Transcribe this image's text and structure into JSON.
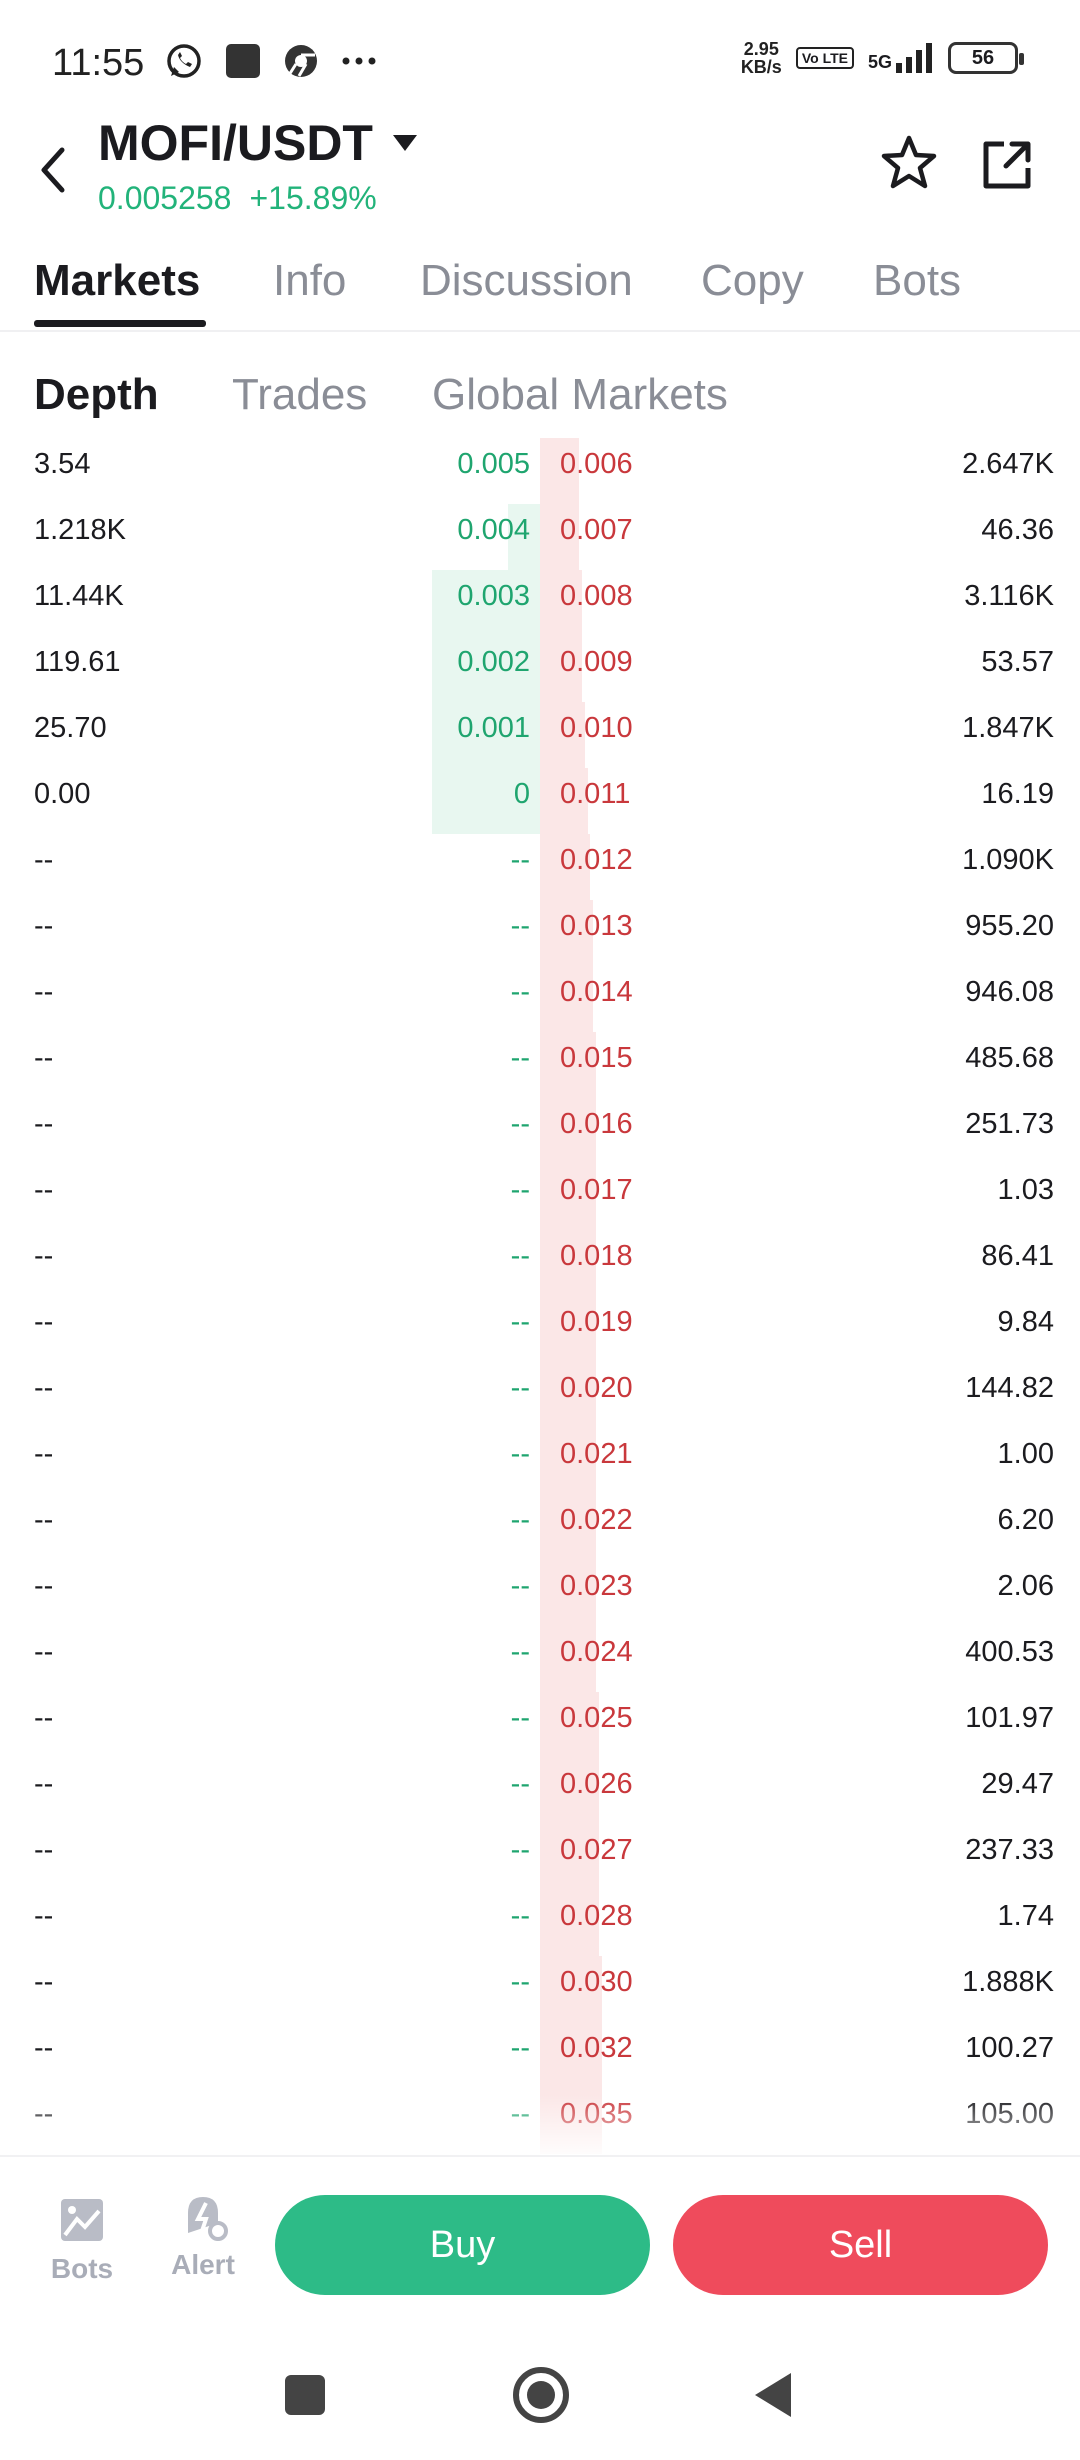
{
  "status_bar": {
    "time": "11:55",
    "speed_value": "2.95",
    "speed_unit": "KB/s",
    "volte": "Vo LTE",
    "network": "5G",
    "battery": "56"
  },
  "header": {
    "pair": "MOFI/USDT",
    "price": "0.005258",
    "change": "+15.89%"
  },
  "tabs": [
    "Markets",
    "Info",
    "Discussion",
    "Copy",
    "Bots"
  ],
  "subtabs": [
    "Depth",
    "Trades",
    "Global Markets"
  ],
  "order_book": {
    "rows": [
      {
        "bid_qty": "3.54",
        "bid_price": "0.005",
        "ask_price": "0.006",
        "ask_qty": "2.647K"
      },
      {
        "bid_qty": "1.218K",
        "bid_price": "0.004",
        "ask_price": "0.007",
        "ask_qty": "46.36"
      },
      {
        "bid_qty": "11.44K",
        "bid_price": "0.003",
        "ask_price": "0.008",
        "ask_qty": "3.116K"
      },
      {
        "bid_qty": "119.61",
        "bid_price": "0.002",
        "ask_price": "0.009",
        "ask_qty": "53.57"
      },
      {
        "bid_qty": "25.70",
        "bid_price": "0.001",
        "ask_price": "0.010",
        "ask_qty": "1.847K"
      },
      {
        "bid_qty": "0.00",
        "bid_price": "0",
        "ask_price": "0.011",
        "ask_qty": "16.19"
      },
      {
        "bid_qty": "--",
        "bid_price": "--",
        "ask_price": "0.012",
        "ask_qty": "1.090K"
      },
      {
        "bid_qty": "--",
        "bid_price": "--",
        "ask_price": "0.013",
        "ask_qty": "955.20"
      },
      {
        "bid_qty": "--",
        "bid_price": "--",
        "ask_price": "0.014",
        "ask_qty": "946.08"
      },
      {
        "bid_qty": "--",
        "bid_price": "--",
        "ask_price": "0.015",
        "ask_qty": "485.68"
      },
      {
        "bid_qty": "--",
        "bid_price": "--",
        "ask_price": "0.016",
        "ask_qty": "251.73"
      },
      {
        "bid_qty": "--",
        "bid_price": "--",
        "ask_price": "0.017",
        "ask_qty": "1.03"
      },
      {
        "bid_qty": "--",
        "bid_price": "--",
        "ask_price": "0.018",
        "ask_qty": "86.41"
      },
      {
        "bid_qty": "--",
        "bid_price": "--",
        "ask_price": "0.019",
        "ask_qty": "9.84"
      },
      {
        "bid_qty": "--",
        "bid_price": "--",
        "ask_price": "0.020",
        "ask_qty": "144.82"
      },
      {
        "bid_qty": "--",
        "bid_price": "--",
        "ask_price": "0.021",
        "ask_qty": "1.00"
      },
      {
        "bid_qty": "--",
        "bid_price": "--",
        "ask_price": "0.022",
        "ask_qty": "6.20"
      },
      {
        "bid_qty": "--",
        "bid_price": "--",
        "ask_price": "0.023",
        "ask_qty": "2.06"
      },
      {
        "bid_qty": "--",
        "bid_price": "--",
        "ask_price": "0.024",
        "ask_qty": "400.53"
      },
      {
        "bid_qty": "--",
        "bid_price": "--",
        "ask_price": "0.025",
        "ask_qty": "101.97"
      },
      {
        "bid_qty": "--",
        "bid_price": "--",
        "ask_price": "0.026",
        "ask_qty": "29.47"
      },
      {
        "bid_qty": "--",
        "bid_price": "--",
        "ask_price": "0.027",
        "ask_qty": "237.33"
      },
      {
        "bid_qty": "--",
        "bid_price": "--",
        "ask_price": "0.028",
        "ask_qty": "1.74"
      },
      {
        "bid_qty": "--",
        "bid_price": "--",
        "ask_price": "0.030",
        "ask_qty": "1.888K"
      },
      {
        "bid_qty": "--",
        "bid_price": "--",
        "ask_price": "0.032",
        "ask_qty": "100.27"
      },
      {
        "bid_qty": "--",
        "bid_price": "--",
        "ask_price": "0.035",
        "ask_qty": "105.00"
      }
    ],
    "bid_depth_fraction": [
      0.0,
      0.06,
      0.2,
      0.2,
      0.2,
      0.2
    ],
    "ask_depth_fraction": [
      0.13,
      0.13,
      0.14,
      0.14,
      0.15,
      0.16,
      0.17,
      0.18,
      0.18,
      0.19,
      0.19,
      0.19,
      0.19,
      0.19,
      0.19,
      0.19,
      0.19,
      0.19,
      0.19,
      0.2,
      0.2,
      0.2,
      0.2,
      0.21,
      0.21,
      0.21
    ]
  },
  "action_bar": {
    "bots_label": "Bots",
    "alert_label": "Alert",
    "buy_label": "Buy",
    "sell_label": "Sell"
  },
  "colors": {
    "up": "#22b37a",
    "down": "#c9383c",
    "buy": "#2dbb87",
    "sell": "#ef4b5c"
  },
  "icons": [
    "whatsapp-icon",
    "app-icon",
    "chrome-icon",
    "more-icon",
    "back-icon",
    "caret-down-icon",
    "star-icon",
    "share-icon",
    "bots-icon",
    "alert-icon"
  ]
}
